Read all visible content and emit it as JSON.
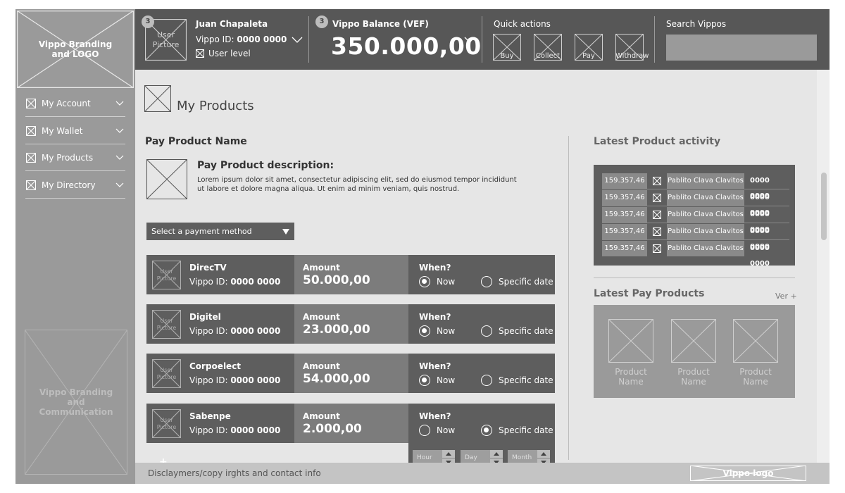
{
  "sidebar": {
    "logo": "Vippo Branding and LOGO",
    "items": [
      {
        "label": "My Account"
      },
      {
        "label": "My Wallet"
      },
      {
        "label": "My Products"
      },
      {
        "label": "My Directory"
      }
    ],
    "promo": "Vippo Branding and Communication"
  },
  "topbar": {
    "user_badge": "3",
    "user_picture": "User Picture",
    "user_name": "Juan Chapaleta",
    "vippo_id_label": "Vippo ID:",
    "vippo_id": "0000 0000",
    "user_level": "User level",
    "balance_badge": "3",
    "balance_label": "Vippo Balance (VEF)",
    "balance": "350.000,00",
    "quick_actions_label": "Quick actions",
    "quick_actions": [
      "Buy",
      "Collect",
      "Pay",
      "Withdraw"
    ],
    "search_label": "Search Vippos",
    "search_value": ""
  },
  "page": {
    "title": "My Products",
    "product_name": "Pay Product Name",
    "description_title": "Pay Product description:",
    "description_text_1": "Lorem ipsum dolor sit amet, consectetur adipiscing elit, sed do eiusmod tempor incididunt",
    "description_text_2": "ut labore et dolore magna aliqua. Ut enim ad minim veniam, quis nostrud.",
    "payment_method": "Select a payment method",
    "add_symbol": "+"
  },
  "payments": [
    {
      "picture": "User Picture",
      "name": "DirecTV",
      "id_label": "Vippo ID:",
      "id": "0000 0000",
      "amount_label": "Amount",
      "amount": "50.000,00",
      "when_label": "When?",
      "now_label": "Now",
      "date_label": "Specific date",
      "selected": "now"
    },
    {
      "picture": "User Picture",
      "name": "Digitel",
      "id_label": "Vippo ID:",
      "id": "0000 0000",
      "amount_label": "Amount",
      "amount": "23.000,00",
      "when_label": "When?",
      "now_label": "Now",
      "date_label": "Specific date",
      "selected": "now"
    },
    {
      "picture": "User Picture",
      "name": "Corpoelect",
      "id_label": "Vippo ID:",
      "id": "0000 0000",
      "amount_label": "Amount",
      "amount": "54.000,00",
      "when_label": "When?",
      "now_label": "Now",
      "date_label": "Specific date",
      "selected": "now"
    },
    {
      "picture": "User Picture",
      "name": "Sabenpe",
      "id_label": "Vippo ID:",
      "id": "0000 0000",
      "amount_label": "Amount",
      "amount": "2.000,00",
      "when_label": "When?",
      "now_label": "Now",
      "date_label": "Specific date",
      "selected": "date"
    }
  ],
  "schedule": {
    "hour": "Hour",
    "day": "Day",
    "month": "Month"
  },
  "activity": {
    "title": "Latest Product activity",
    "rows": [
      {
        "amount": "159.357,46",
        "name": "Pablito Clava Clavitos",
        "id": "0000 0000"
      },
      {
        "amount": "159.357,46",
        "name": "Pablito Clava Clavitos",
        "id": "0000 0000"
      },
      {
        "amount": "159.357,46",
        "name": "Pablito Clava Clavitos",
        "id": "0000 0000"
      },
      {
        "amount": "159.357,46",
        "name": "Pablito Clava Clavitos",
        "id": "0000 0000"
      },
      {
        "amount": "159.357,46",
        "name": "Pablito Clava Clavitos",
        "id": "0000 0000"
      }
    ]
  },
  "latest_pay": {
    "title": "Latest Pay Products",
    "more": "Ver +",
    "products": [
      {
        "name_1": "Product",
        "name_2": "Name"
      },
      {
        "name_1": "Product",
        "name_2": "Name"
      },
      {
        "name_1": "Product",
        "name_2": "Name"
      }
    ]
  },
  "footer": {
    "text": "Disclaymers/copy irghts and contact info",
    "logo": "Vippo logo"
  },
  "colors": {
    "topbar": "#575757",
    "sidebar": "#9a9a9a",
    "content": "#e6e6e6",
    "row_dark": "#5e5e5e",
    "row_mid": "#7c7c7c"
  }
}
